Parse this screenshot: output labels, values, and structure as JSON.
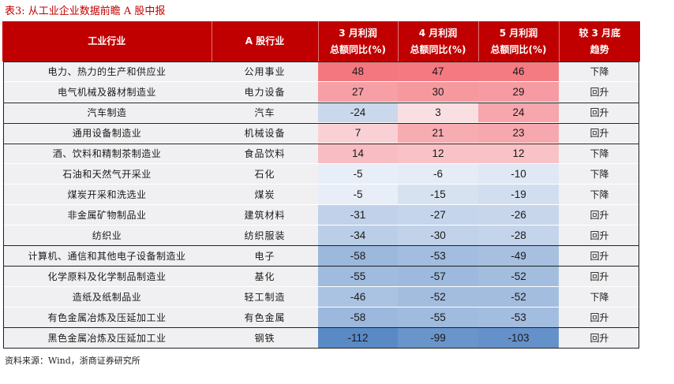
{
  "title": "表3:   从工业企业数据前瞻 A 股中报",
  "headers": {
    "industry": "工业行业",
    "sector": "A 股行业",
    "mar_line1": "3 月利润",
    "mar_line2": "总额同比(%)",
    "apr_line1": "4 月利润",
    "apr_line2": "总额同比(%)",
    "may_line1": "5 月利润",
    "may_line2": "总额同比(%)",
    "trend_line1": "较 3 月底",
    "trend_line2": "趋势"
  },
  "rows": [
    {
      "industry": "电力、热力的生产和供应业",
      "sector": "公用事业",
      "mar": "48",
      "apr": "47",
      "may": "46",
      "trend": "下降"
    },
    {
      "industry": "电气机械及器材制造业",
      "sector": "电力设备",
      "mar": "27",
      "apr": "30",
      "may": "29",
      "trend": "回升"
    },
    {
      "industry": "汽车制造",
      "sector": "汽车",
      "mar": "-24",
      "apr": "3",
      "may": "24",
      "trend": "回升"
    },
    {
      "industry": "通用设备制造业",
      "sector": "机械设备",
      "mar": "7",
      "apr": "21",
      "may": "23",
      "trend": "回升"
    },
    {
      "industry": "酒、饮料和精制茶制造业",
      "sector": "食品饮料",
      "mar": "14",
      "apr": "12",
      "may": "12",
      "trend": "下降"
    },
    {
      "industry": "石油和天然气开采业",
      "sector": "石化",
      "mar": "-5",
      "apr": "-6",
      "may": "-10",
      "trend": "下降"
    },
    {
      "industry": "煤炭开采和洗选业",
      "sector": "煤炭",
      "mar": "-5",
      "apr": "-15",
      "may": "-19",
      "trend": "下降"
    },
    {
      "industry": "非金属矿物制品业",
      "sector": "建筑材料",
      "mar": "-31",
      "apr": "-27",
      "may": "-26",
      "trend": "回升"
    },
    {
      "industry": "纺织业",
      "sector": "纺织服装",
      "mar": "-34",
      "apr": "-30",
      "may": "-28",
      "trend": "回升"
    },
    {
      "industry": "计算机、通信和其他电子设备制造业",
      "sector": "电子",
      "mar": "-58",
      "apr": "-53",
      "may": "-49",
      "trend": "回升"
    },
    {
      "industry": "化学原料及化学制品制造业",
      "sector": "基化",
      "mar": "-55",
      "apr": "-57",
      "may": "-52",
      "trend": "回升"
    },
    {
      "industry": "造纸及纸制品业",
      "sector": "轻工制造",
      "mar": "-46",
      "apr": "-52",
      "may": "-52",
      "trend": "下降"
    },
    {
      "industry": "有色金属冶炼及压延加工业",
      "sector": "有色金属",
      "mar": "-58",
      "apr": "-55",
      "may": "-53",
      "trend": "回升"
    },
    {
      "industry": "黑色金属冶炼及压延加工业",
      "sector": "钢铁",
      "mar": "-112",
      "apr": "-99",
      "may": "-103",
      "trend": "回升"
    }
  ],
  "colors": {
    "header_bg": "#c00000",
    "row_bg": "#f0f0f2",
    "positive_scale": "#f4777f",
    "negative_scale": "#5a8ac6"
  },
  "source": "资料来源：Wind，浙商证券研究所"
}
